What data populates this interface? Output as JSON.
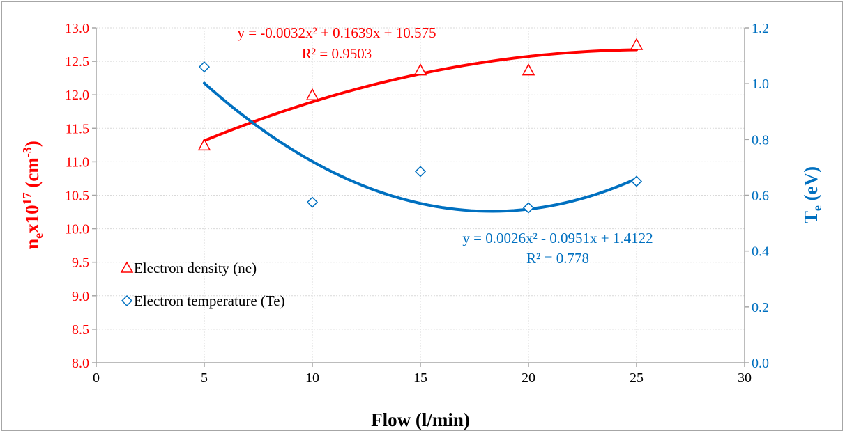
{
  "colors": {
    "ne": "#FF0000",
    "te": "#0070C0",
    "axis": "#A6A6A6",
    "grid": "#D9D9D9",
    "text": "#000000"
  },
  "chart_data": {
    "type": "scatter",
    "grid": true,
    "legend_position": "left-middle",
    "xlabel": "Flow (l/min)",
    "xlim": [
      0,
      30
    ],
    "x_ticks": [
      "0",
      "5",
      "10",
      "15",
      "20",
      "25",
      "30"
    ],
    "y_left": {
      "label_main": "n",
      "label_sub": "e",
      "label_rest": "x10",
      "label_sup": "17",
      "label_unit": " (cm",
      "label_unit_sup": "-3",
      "label_close": ")",
      "lim": [
        8.0,
        13.0
      ],
      "ticks": [
        "8.0",
        "8.5",
        "9.0",
        "9.5",
        "10.0",
        "10.5",
        "11.0",
        "11.5",
        "12.0",
        "12.5",
        "13.0"
      ]
    },
    "y_right": {
      "label_main": "T",
      "label_sub": "e",
      "label_unit": " (eV)",
      "lim": [
        0.0,
        1.2
      ],
      "ticks": [
        "0.0",
        "0.2",
        "0.4",
        "0.6",
        "0.8",
        "1.0",
        "1.2"
      ]
    },
    "series": [
      {
        "name": "Electron density (ne)",
        "axis": "left",
        "marker": "triangle",
        "x": [
          5,
          10,
          15,
          20,
          25
        ],
        "y": [
          11.25,
          12.0,
          12.37,
          12.37,
          12.75
        ],
        "trendline": {
          "type": "poly2",
          "coefficients": [
            -0.0032,
            0.1639,
            10.575
          ],
          "x_range": [
            5,
            25
          ],
          "equation_text": "y = -0.0032x² + 0.1639x + 10.575",
          "r2_text": "R² = 0.9503"
        }
      },
      {
        "name": "Electron temperature (Te)",
        "axis": "right",
        "marker": "diamond",
        "x": [
          5,
          10,
          15,
          20,
          25
        ],
        "y": [
          1.06,
          0.575,
          0.685,
          0.555,
          0.65
        ],
        "trendline": {
          "type": "poly2",
          "coefficients": [
            0.0026,
            -0.0951,
            1.4122
          ],
          "x_range": [
            5,
            25
          ],
          "equation_text": "y = 0.0026x² - 0.0951x + 1.4122",
          "r2_text": "R² = 0.778"
        }
      }
    ]
  }
}
